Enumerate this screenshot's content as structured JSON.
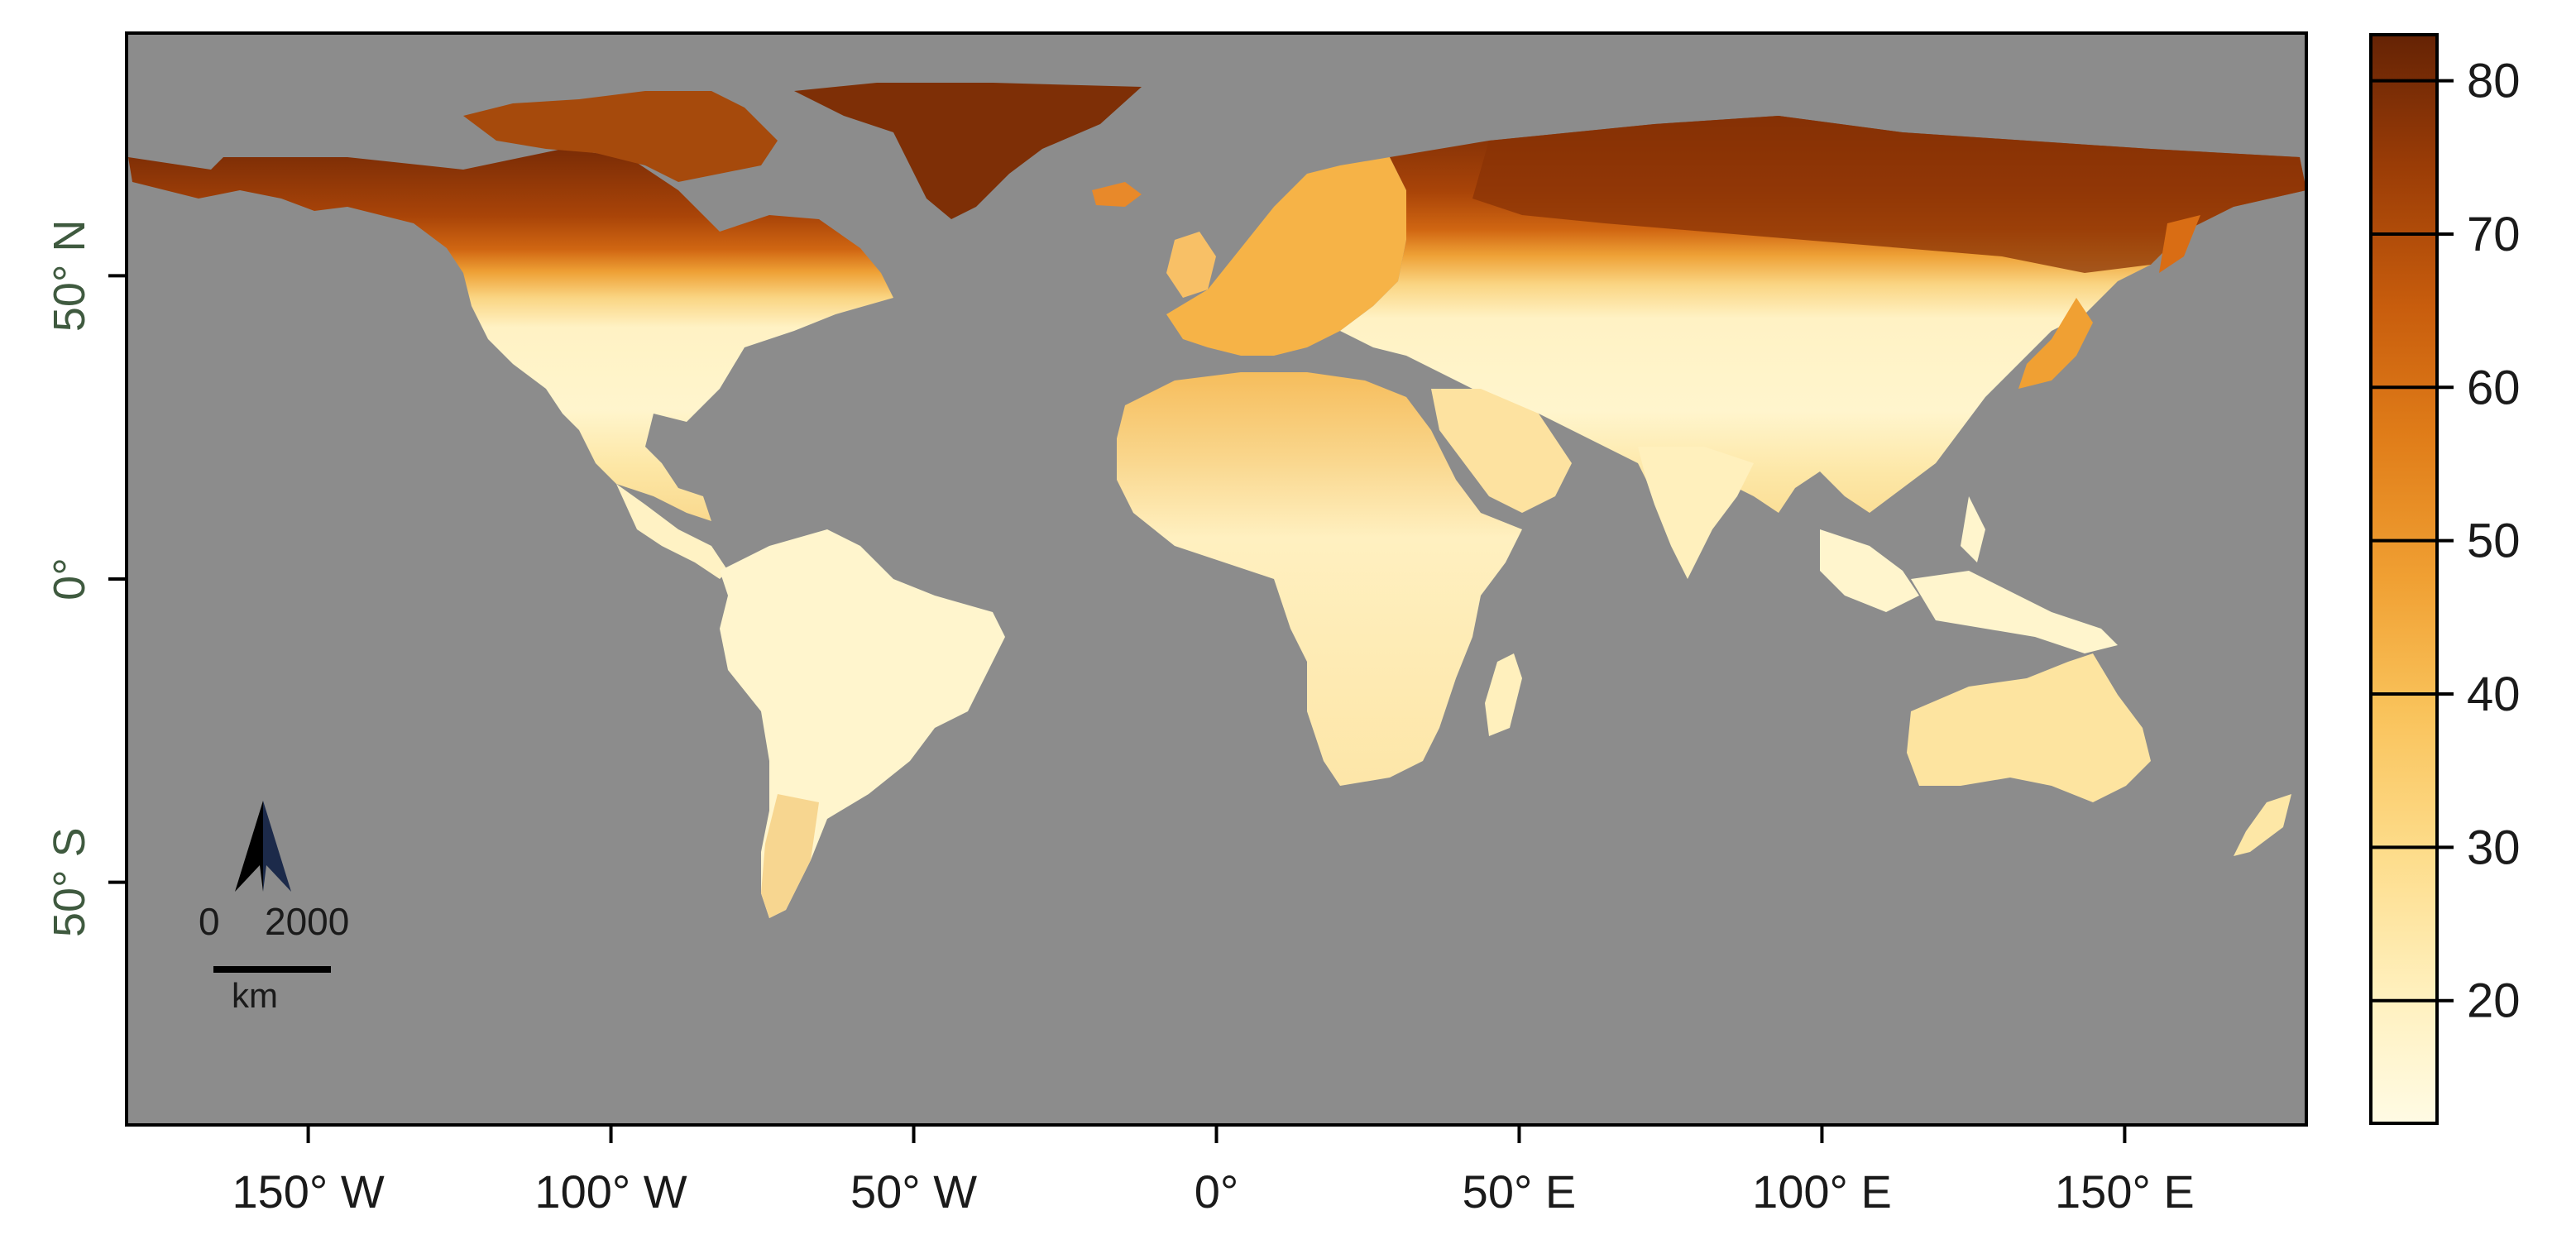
{
  "map": {
    "x_ticks": [
      "150° W",
      "100° W",
      "50° W",
      "0°",
      "50° E",
      "100° E",
      "150° E"
    ],
    "x_tick_values": [
      -150,
      -100,
      -50,
      0,
      50,
      100,
      150
    ],
    "y_ticks": [
      "50° N",
      "0°",
      "50° S"
    ],
    "y_tick_values": [
      50,
      0,
      -50
    ],
    "extent": {
      "lon": [
        -180,
        180
      ],
      "lat": [
        -90,
        90
      ]
    },
    "ocean_color": "#8c8c8c",
    "land_color_scale": [
      "#fff8d6",
      "#fee9a8",
      "#fdd27a",
      "#f7b54a",
      "#eb9228",
      "#d96d14",
      "#b8500a",
      "#8a3306",
      "#5c1f04"
    ]
  },
  "legend": {
    "ticks": [
      "20",
      "30",
      "40",
      "50",
      "60",
      "70",
      "80"
    ],
    "tick_values": [
      20,
      30,
      40,
      50,
      60,
      70,
      80
    ],
    "range": [
      12,
      83
    ]
  },
  "scalebar": {
    "start_label": "0",
    "end_label": "2000",
    "unit": "km"
  },
  "north_arrow": {
    "icon": "north-arrow-icon"
  }
}
